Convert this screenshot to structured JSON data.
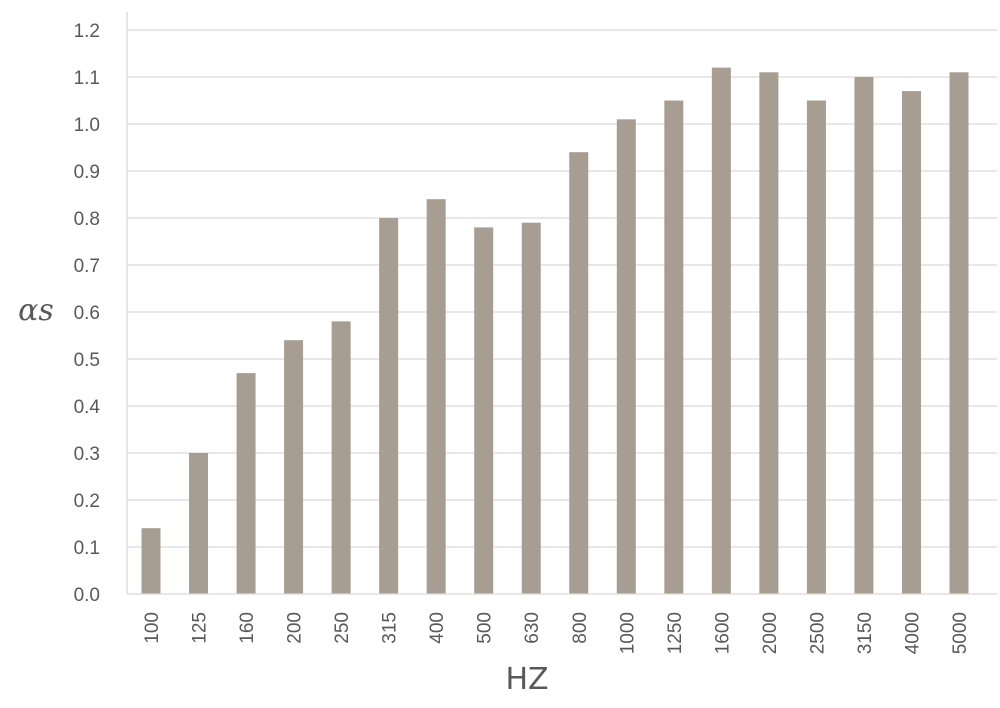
{
  "chart_data": {
    "type": "bar",
    "categories": [
      "100",
      "125",
      "160",
      "200",
      "250",
      "315",
      "400",
      "500",
      "630",
      "800",
      "1000",
      "1250",
      "1600",
      "2000",
      "2500",
      "3150",
      "4000",
      "5000"
    ],
    "values": [
      0.14,
      0.3,
      0.47,
      0.54,
      0.58,
      0.8,
      0.84,
      0.78,
      0.79,
      0.94,
      1.01,
      1.05,
      1.12,
      1.11,
      1.05,
      1.1,
      1.07,
      1.11
    ],
    "title": "",
    "xlabel": "HZ",
    "ylabel": "αs",
    "ylim": [
      0,
      1.2
    ],
    "yticks": [
      "0.0",
      "0.1",
      "0.2",
      "0.3",
      "0.4",
      "0.5",
      "0.6",
      "0.7",
      "0.8",
      "0.9",
      "1.0",
      "1.1",
      "1.2"
    ],
    "grid": true,
    "colors": {
      "bar": "#a79d92",
      "grid": "#d9d9d9",
      "axis": "#d9d9d9",
      "text": "#595959"
    }
  }
}
